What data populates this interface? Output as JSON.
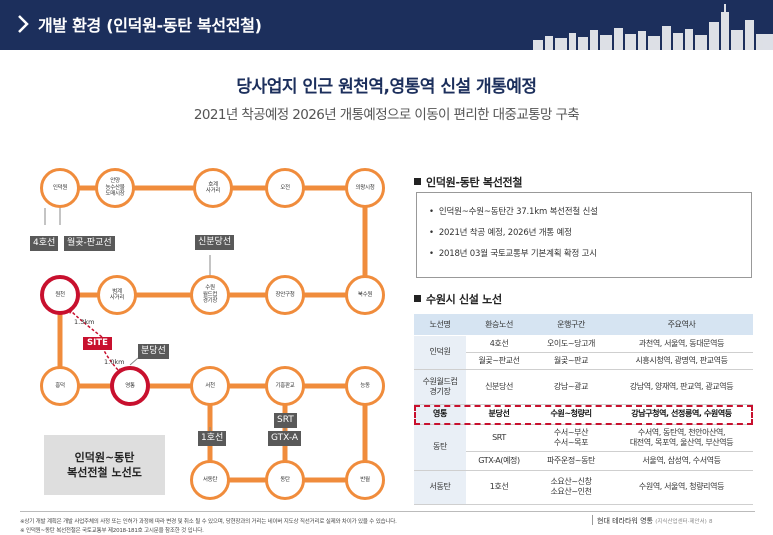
{
  "header": {
    "title": "개발 환경 (인덕원-동탄 복선전철)"
  },
  "headline": "당사업지 인근 원천역,영통역 신설 개통예정",
  "subhead": "2021년 착공예정 2026년 개통예정으로 이동이 편리한 대중교통망 구축",
  "map": {
    "stations": {
      "indeogwon": "인덕원",
      "anyang": "안양\n농수산물\n도매시장",
      "hogye": "호계\n사거리",
      "ojeon": "오전",
      "uiwang": "의왕시청",
      "wonchon": "원천",
      "beomgye": "범계\n사거리",
      "suwon_wc": "수원\n월드컵\n경기장",
      "jangan": "장안구청",
      "buksuwon": "북수원",
      "heungdeok": "흥덕",
      "yeongtong": "영통",
      "seocheon": "서천",
      "giheung": "기흥판교",
      "neungdong": "능동",
      "seodongtan": "서동탄",
      "dongtan": "동탄",
      "banwol": "반월"
    },
    "tags": {
      "line4": "4호선",
      "wolgot": "월곶-판교선",
      "sinbundang": "신분당선",
      "bundang": "분당선",
      "srt": "SRT",
      "gtxa": "GTX-A",
      "line1": "1호선"
    },
    "site_label": "SITE",
    "dist_wonchon": "1.3km",
    "dist_yeongtong": "1.0km",
    "legend_line1": "인덕원~동탄",
    "legend_line2": "복선전철 노선도"
  },
  "section1": {
    "title": "인덕원-동탄 복선전철",
    "bullets": [
      "인덕원~수원~동탄간 37.1km 복선전철 신설",
      "2021년 착공 예정, 2026년 개통 예정",
      "2018년 03월 국토교통부 기본계획 확정 고시"
    ]
  },
  "section2": {
    "title": "수원시 신설 노선",
    "headers": [
      "노선명",
      "환승노선",
      "운행구간",
      "주요역사"
    ],
    "rows": [
      [
        "인덕원",
        "4호선",
        "오이도~당고개",
        "과천역, 서울역, 동대문역등"
      ],
      [
        "",
        "월곶~판교선",
        "월곶~판교",
        "시흥시청역, 광명역, 판교역등"
      ],
      [
        "수원월드컵\n경기장",
        "신분당선",
        "강남~광교",
        "강남역, 양재역, 판교역, 광교역등"
      ],
      [
        "영통",
        "분당선",
        "수원~청량리",
        "강남구청역, 선정릉역, 수원역등"
      ],
      [
        "동탄",
        "SRT",
        "수서~부산\n수서~목포",
        "수서역, 동탄역, 천안아산역,\n대전역, 목포역, 울산역, 부산역등"
      ],
      [
        "",
        "GTX-A(예정)",
        "파주운정~동탄",
        "서울역, 삼성역, 수서역등"
      ],
      [
        "서동탄",
        "1호선",
        "소요산~신창\n소요산~인천",
        "수원역, 서울역, 청량리역등"
      ]
    ]
  },
  "footer": {
    "note1": "※상기 개발 계획은 개발 사업주체의 사정 또는 인허가 과정에 따라 변경 및 취소 될 수 있으며, 당현장과의 거리는 네이버 지도상 직선거리로 실제와 차이가 있을 수 있습니다.",
    "note2": "※ 인덕원~동탄 복선전철은 국토교통부 제2018-181호 고시문을 참조한 것 입니다.",
    "brand": "현대 테라타워 영통",
    "brand_sub": "(지식산업센터·제안서)",
    "page": "8"
  },
  "colors": {
    "navy": "#1c2f5c",
    "line_orange": "#f08c3c",
    "accent_red": "#c8102e",
    "table_header": "#d6e4f2"
  }
}
